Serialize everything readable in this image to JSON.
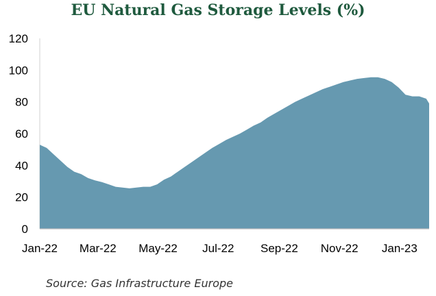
{
  "chart_data": {
    "type": "area",
    "title": "EU Natural Gas Storage Levels (%)",
    "xlabel": "",
    "ylabel": "",
    "ylim": [
      0,
      120
    ],
    "yticks": [
      0,
      20,
      40,
      60,
      80,
      100,
      120
    ],
    "xlim": [
      "2022-01-01",
      "2023-01-31"
    ],
    "xtick_labels": [
      {
        "date": "2022-01-01",
        "label": "Jan-22"
      },
      {
        "date": "2022-03-01",
        "label": "Mar-22"
      },
      {
        "date": "2022-05-01",
        "label": "May-22"
      },
      {
        "date": "2022-07-01",
        "label": "Jul-22"
      },
      {
        "date": "2022-09-01",
        "label": "Sep-22"
      },
      {
        "date": "2022-11-01",
        "label": "Nov-22"
      },
      {
        "date": "2023-01-01",
        "label": "Jan-23"
      }
    ],
    "grid": false,
    "color": "#6699b0",
    "series": [
      {
        "x": [
          "2022-01-01",
          "2022-01-08",
          "2022-01-15",
          "2022-01-22",
          "2022-01-29",
          "2022-02-05",
          "2022-02-12",
          "2022-02-19",
          "2022-02-26",
          "2022-03-05",
          "2022-03-12",
          "2022-03-19",
          "2022-03-26",
          "2022-04-02",
          "2022-04-09",
          "2022-04-16",
          "2022-04-23",
          "2022-04-30",
          "2022-05-07",
          "2022-05-14",
          "2022-05-21",
          "2022-05-28",
          "2022-06-04",
          "2022-06-11",
          "2022-06-18",
          "2022-06-25",
          "2022-07-02",
          "2022-07-09",
          "2022-07-16",
          "2022-07-23",
          "2022-07-30",
          "2022-08-06",
          "2022-08-13",
          "2022-08-20",
          "2022-08-27",
          "2022-09-03",
          "2022-09-10",
          "2022-09-17",
          "2022-09-24",
          "2022-10-01",
          "2022-10-08",
          "2022-10-15",
          "2022-10-22",
          "2022-10-29",
          "2022-11-05",
          "2022-11-12",
          "2022-11-19",
          "2022-11-26",
          "2022-12-03",
          "2022-12-10",
          "2022-12-17",
          "2022-12-24",
          "2022-12-31",
          "2023-01-07",
          "2023-01-14",
          "2023-01-21",
          "2023-01-28",
          "2023-01-31"
        ],
        "values": [
          53,
          51,
          47,
          43,
          39,
          36,
          34.5,
          32,
          30.5,
          29.5,
          28,
          26.5,
          26,
          25.5,
          26,
          26.5,
          26.5,
          28,
          31,
          33,
          36,
          39,
          42,
          45,
          48,
          51,
          53.5,
          56,
          58,
          60,
          62.5,
          65,
          67,
          70,
          72.5,
          75,
          77.5,
          80,
          82,
          84,
          86,
          88,
          89.5,
          91,
          92.5,
          93.5,
          94.5,
          95,
          95.5,
          95.5,
          94.5,
          92.5,
          89,
          84.5,
          83.5,
          83.5,
          82,
          79
        ]
      }
    ],
    "source": "Source: Gas Infrastructure Europe"
  }
}
